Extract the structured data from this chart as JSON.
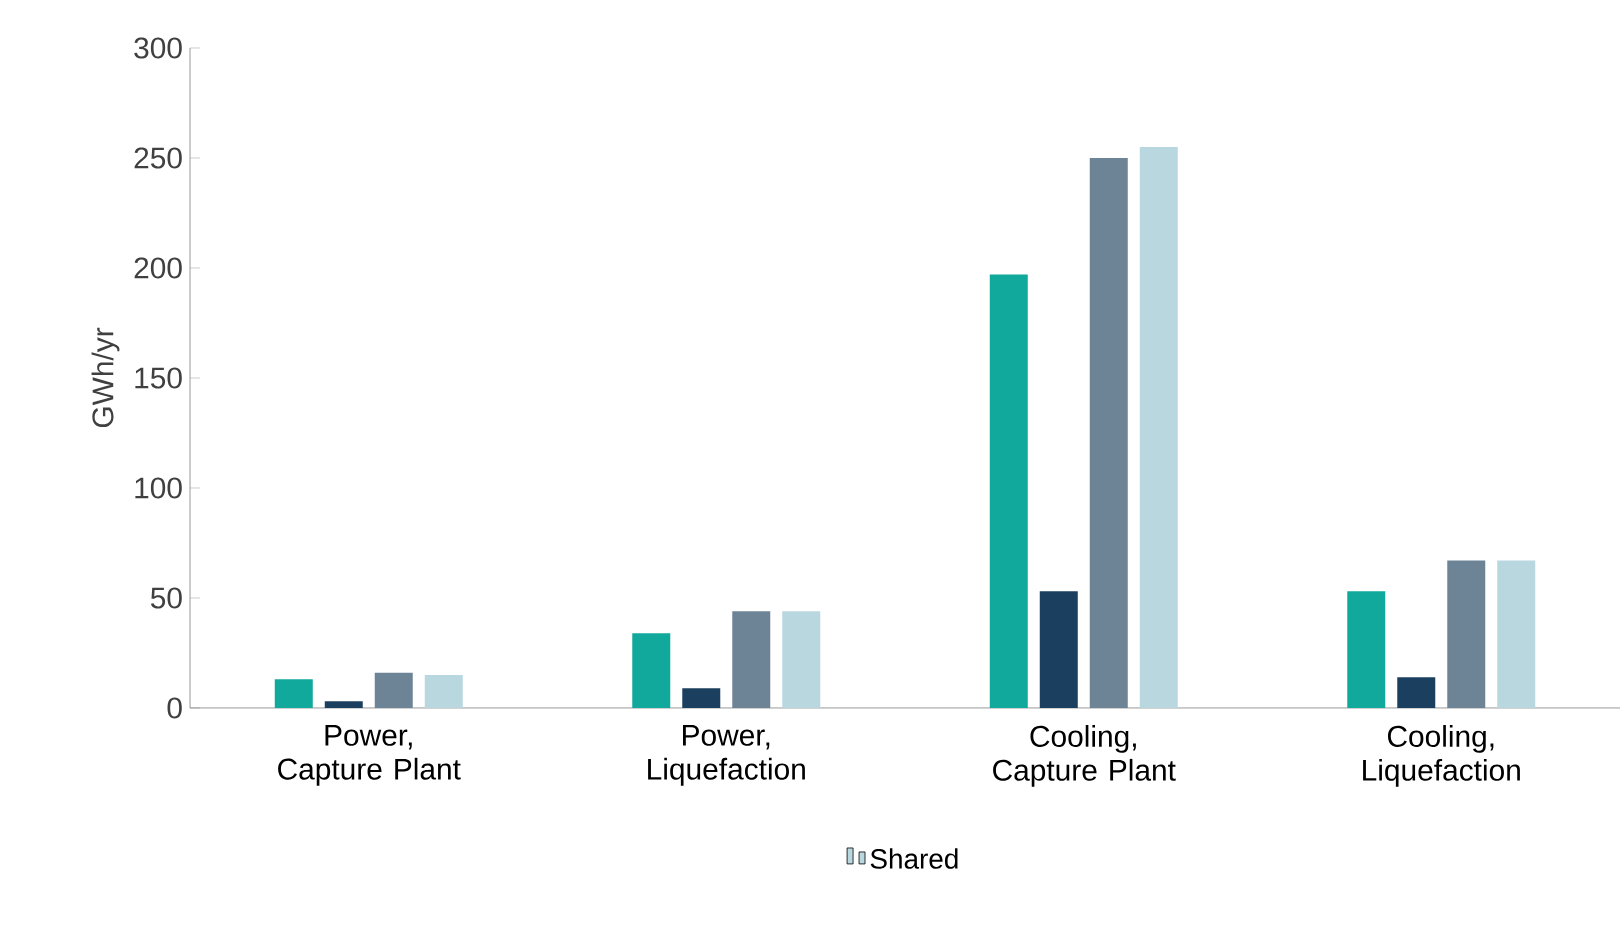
{
  "chart_data": {
    "type": "bar",
    "ylabel": "GWh/yr",
    "categories": [
      "Power, Capture Plant",
      "Power, Liquefaction",
      "Cooling, Capture Plant",
      "Cooling, Liquefaction"
    ],
    "series": [
      {
        "color": "#10a99c",
        "values": [
          13,
          34,
          197,
          53
        ]
      },
      {
        "color": "#1b3f5e",
        "values": [
          3,
          9,
          53,
          14
        ]
      },
      {
        "color": "#6d8496",
        "values": [
          16,
          44,
          250,
          67
        ]
      },
      {
        "name": "Shared",
        "color": "#b9d7df",
        "values": [
          15,
          44,
          255,
          67
        ]
      }
    ],
    "ylim": [
      0,
      300
    ],
    "yticks": [
      0,
      50,
      100,
      150,
      200,
      250,
      300
    ],
    "grid": false,
    "legend": "bottom"
  }
}
